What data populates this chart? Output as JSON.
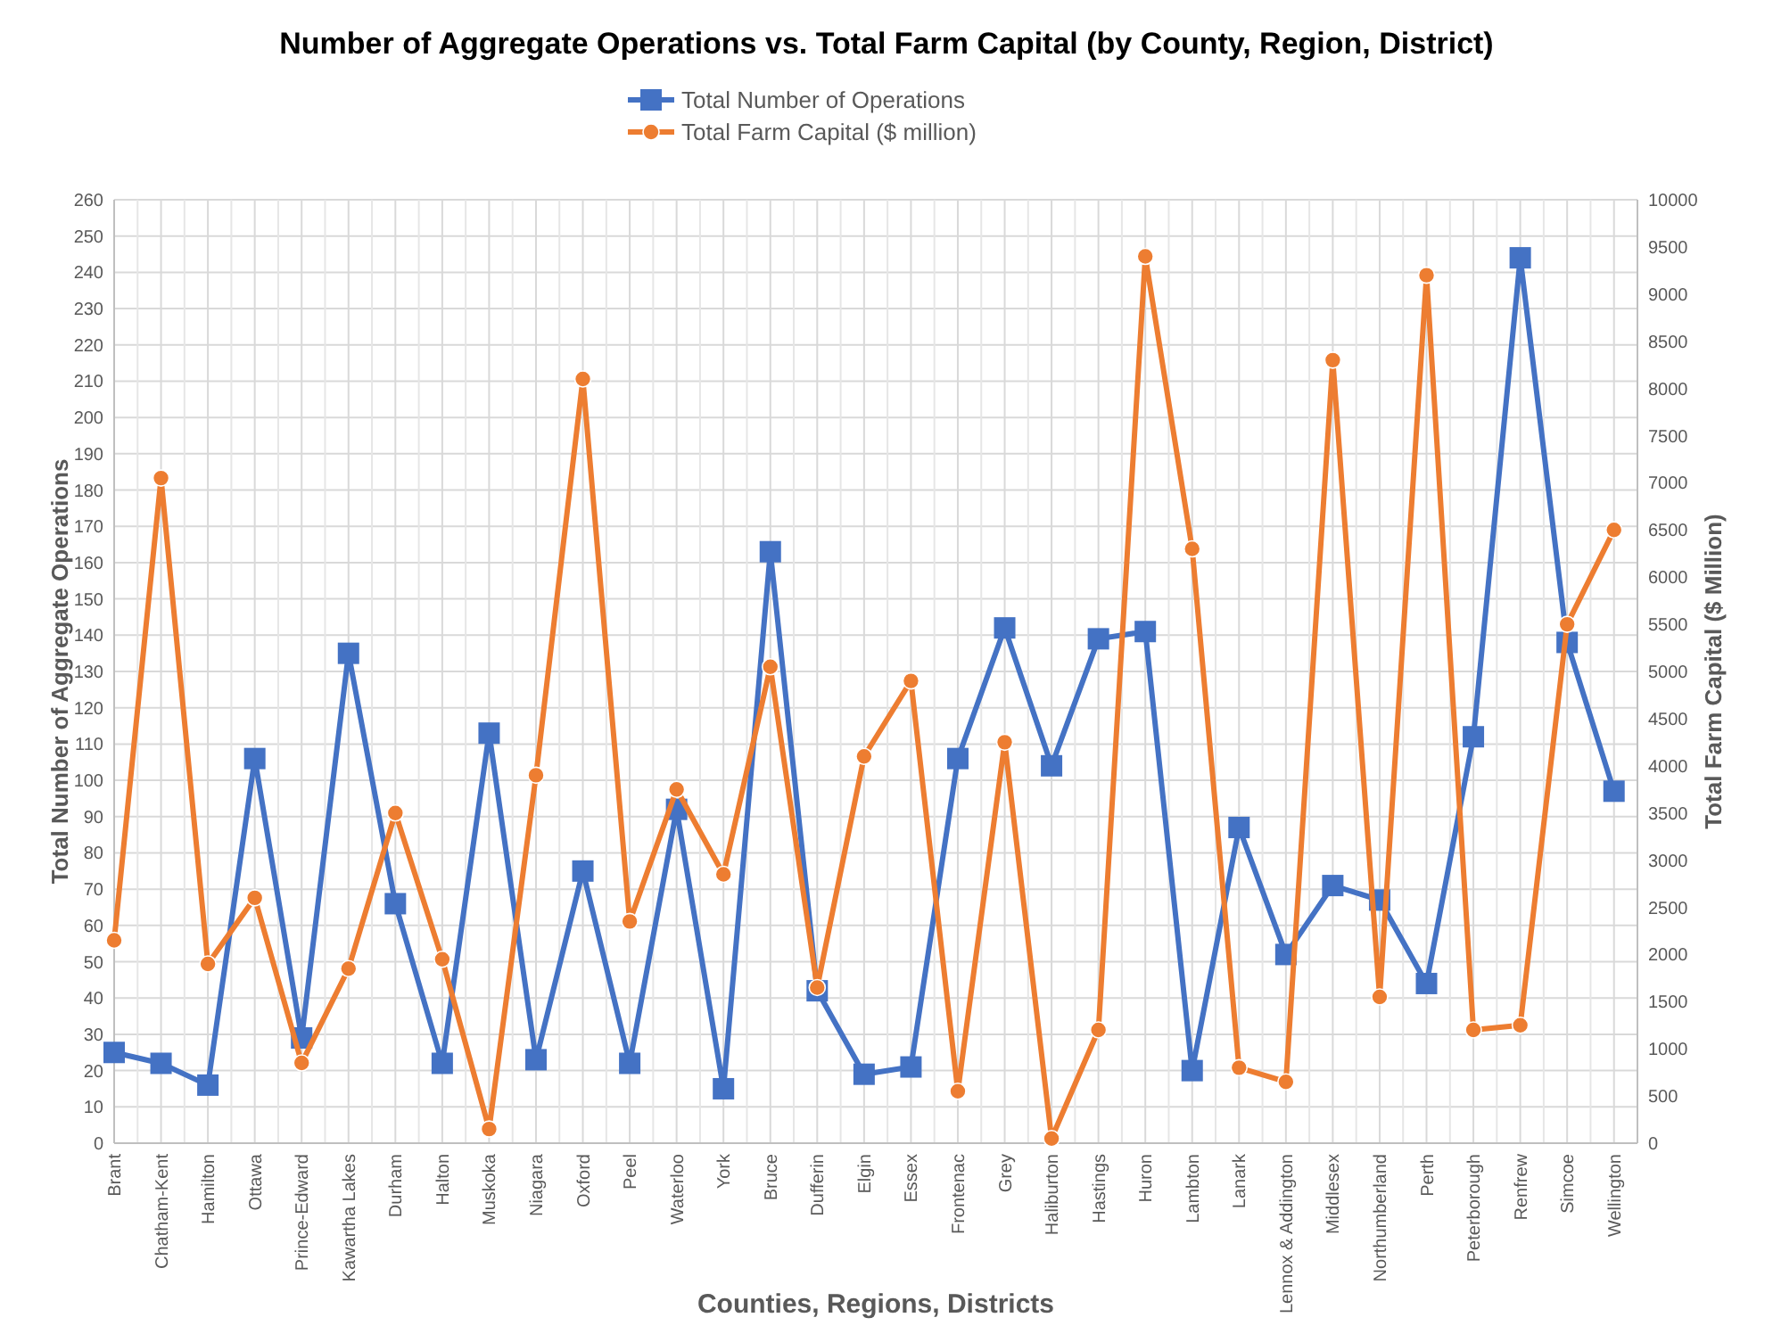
{
  "chart_data": {
    "type": "line",
    "title": "Number of Aggregate Operations vs. Total Farm Capital (by County, Region, District)",
    "xlabel": "Counties, Regions, Districts",
    "ylabel": "Total Number of Aggregate Operations",
    "y2label": "Total Farm Capital ($ Million)",
    "categories": [
      "Brant",
      "Chatham-Kent",
      "Hamilton",
      "Ottawa",
      "Prince-Edward",
      "Kawartha Lakes",
      "Durham",
      "Halton",
      "Muskoka",
      "Niagara",
      "Oxford",
      "Peel",
      "Waterloo",
      "York",
      "Bruce",
      "Dufferin",
      "Elgin",
      "Essex",
      "Frontenac",
      "Grey",
      "Haliburton",
      "Hastings",
      "Huron",
      "Lambton",
      "Lanark",
      "Lennox & Addington",
      "Middlesex",
      "Northumberland",
      "Perth",
      "Peterborough",
      "Renfrew",
      "Simcoe",
      "Wellington"
    ],
    "series": [
      {
        "name": "Total Number of Operations",
        "color": "#4472c4",
        "marker": "square",
        "values": [
          25,
          22,
          16,
          106,
          29,
          135,
          66,
          22,
          113,
          23,
          75,
          22,
          92,
          15,
          163,
          42,
          19,
          21,
          106,
          142,
          104,
          139,
          141,
          20,
          87,
          52,
          71,
          67,
          44,
          112,
          244,
          138,
          97
        ]
      },
      {
        "name": "Total Farm Capital ($ million)",
        "color": "#ed7d31",
        "marker": "circle",
        "axis": "y2",
        "values": [
          2150,
          7050,
          1900,
          2600,
          850,
          1850,
          3500,
          1950,
          150,
          3900,
          8100,
          2350,
          3750,
          2850,
          5050,
          1650,
          4100,
          4900,
          550,
          4250,
          50,
          1200,
          9400,
          6300,
          800,
          650,
          8300,
          1550,
          9200,
          1200,
          1250,
          5500,
          6500
        ]
      }
    ],
    "ylim": [
      0,
      260
    ],
    "yticks": [
      0,
      10,
      20,
      30,
      40,
      50,
      60,
      70,
      80,
      90,
      100,
      110,
      120,
      130,
      140,
      150,
      160,
      170,
      180,
      190,
      200,
      210,
      220,
      230,
      240,
      250,
      260
    ],
    "y2lim": [
      0,
      10000
    ],
    "y2ticks": [
      0,
      500,
      1000,
      1500,
      2000,
      2500,
      3000,
      3500,
      4000,
      4500,
      5000,
      5500,
      6000,
      6500,
      7000,
      7500,
      8000,
      8500,
      9000,
      9500,
      10000
    ],
    "grid": true,
    "legend": "top",
    "line_style": "solid"
  }
}
